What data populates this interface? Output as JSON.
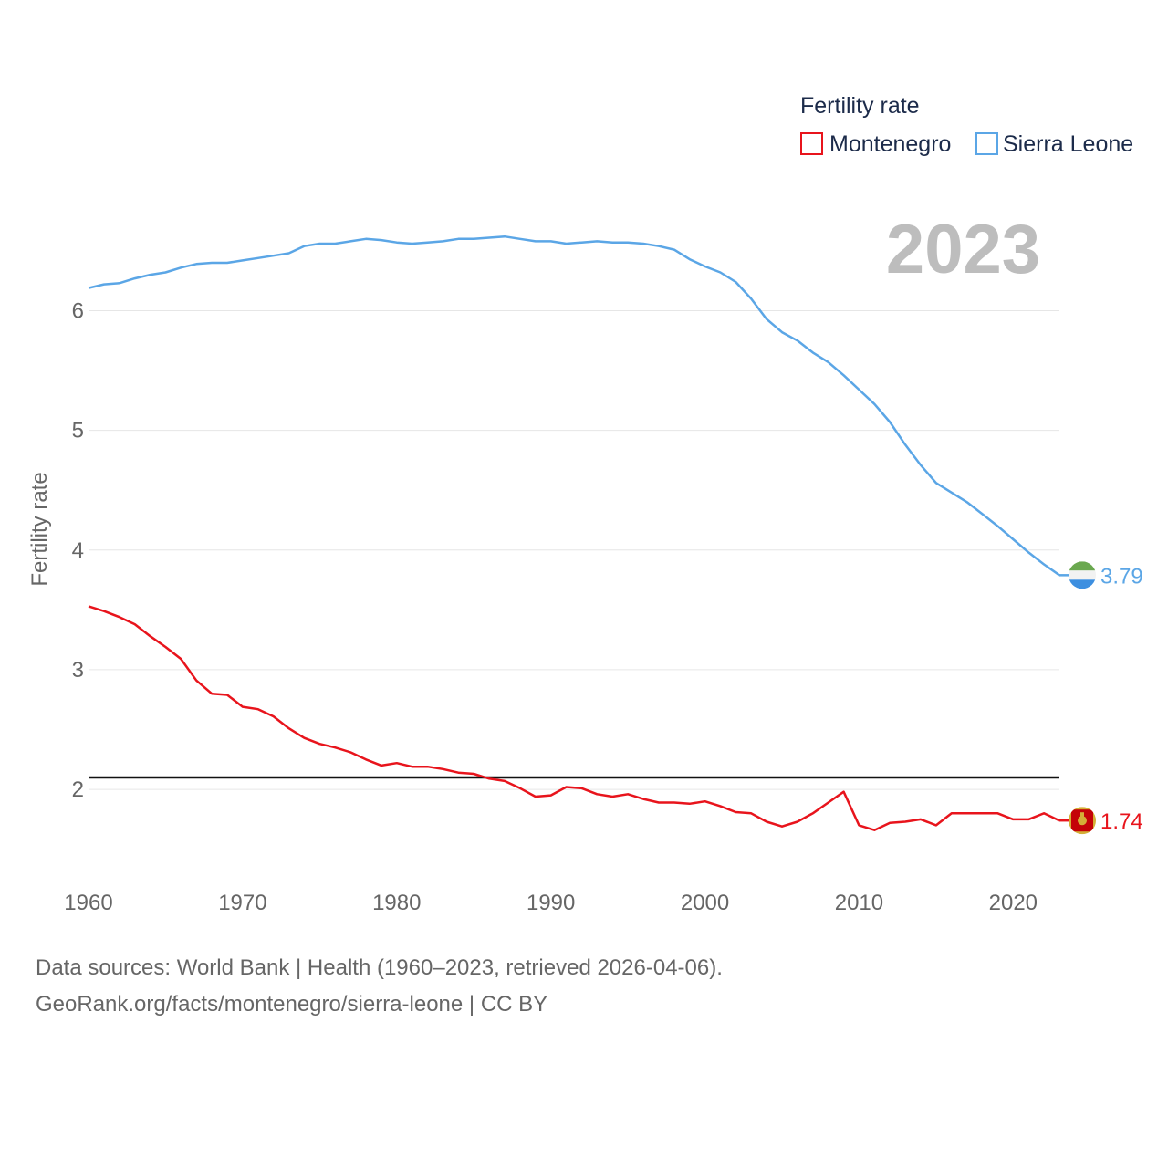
{
  "chart_data": {
    "type": "line",
    "title": "Fertility rate",
    "ylabel": "Fertility rate",
    "xlabel": "",
    "year_label": "2023",
    "xlim": [
      1960,
      2023
    ],
    "ylim": [
      1.2,
      7.3
    ],
    "xticks": [
      1960,
      1970,
      1980,
      1990,
      2000,
      2010,
      2020
    ],
    "yticks": [
      2,
      3,
      4,
      5,
      6
    ],
    "reference_line": 2.1,
    "x": [
      1960,
      1961,
      1962,
      1963,
      1964,
      1965,
      1966,
      1967,
      1968,
      1969,
      1970,
      1971,
      1972,
      1973,
      1974,
      1975,
      1976,
      1977,
      1978,
      1979,
      1980,
      1981,
      1982,
      1983,
      1984,
      1985,
      1986,
      1987,
      1988,
      1989,
      1990,
      1991,
      1992,
      1993,
      1994,
      1995,
      1996,
      1997,
      1998,
      1999,
      2000,
      2001,
      2002,
      2003,
      2004,
      2005,
      2006,
      2007,
      2008,
      2009,
      2010,
      2011,
      2012,
      2013,
      2014,
      2015,
      2016,
      2017,
      2018,
      2019,
      2020,
      2021,
      2022,
      2023
    ],
    "series": [
      {
        "name": "Montenegro",
        "color": "#e8141c",
        "end_label": "1.74",
        "values": [
          3.53,
          3.49,
          3.44,
          3.38,
          3.28,
          3.19,
          3.09,
          2.91,
          2.8,
          2.79,
          2.69,
          2.67,
          2.61,
          2.51,
          2.43,
          2.38,
          2.35,
          2.31,
          2.25,
          2.2,
          2.22,
          2.19,
          2.19,
          2.17,
          2.14,
          2.13,
          2.09,
          2.07,
          2.01,
          1.94,
          1.95,
          2.02,
          2.01,
          1.96,
          1.94,
          1.96,
          1.92,
          1.89,
          1.89,
          1.88,
          1.9,
          1.86,
          1.81,
          1.8,
          1.73,
          1.69,
          1.73,
          1.8,
          1.89,
          1.98,
          1.7,
          1.66,
          1.72,
          1.73,
          1.75,
          1.7,
          1.8,
          1.8,
          1.8,
          1.8,
          1.75,
          1.75,
          1.8,
          1.74
        ]
      },
      {
        "name": "Sierra Leone",
        "color": "#5ba6e6",
        "end_label": "3.79",
        "values": [
          6.19,
          6.22,
          6.23,
          6.27,
          6.3,
          6.32,
          6.36,
          6.39,
          6.4,
          6.4,
          6.42,
          6.44,
          6.46,
          6.48,
          6.54,
          6.56,
          6.56,
          6.58,
          6.6,
          6.59,
          6.57,
          6.56,
          6.57,
          6.58,
          6.6,
          6.6,
          6.61,
          6.62,
          6.6,
          6.58,
          6.58,
          6.56,
          6.57,
          6.58,
          6.57,
          6.57,
          6.56,
          6.54,
          6.51,
          6.43,
          6.37,
          6.32,
          6.24,
          6.1,
          5.93,
          5.82,
          5.75,
          5.65,
          5.57,
          5.46,
          5.34,
          5.22,
          5.07,
          4.88,
          4.71,
          4.56,
          4.48,
          4.4,
          4.3,
          4.2,
          4.09,
          3.98,
          3.88,
          3.79
        ]
      }
    ]
  },
  "legend": {
    "title": "Fertility rate",
    "items": [
      "Montenegro",
      "Sierra Leone"
    ]
  },
  "source": {
    "line1": "Data sources: World Bank | Health (1960–2023, retrieved 2026-04-06).",
    "line2": "GeoRank.org/facts/montenegro/sierra-leone | CC BY"
  },
  "colors": {
    "montenegro": "#e8141c",
    "sierra_leone": "#5ba6e6",
    "reference": "#111111"
  }
}
